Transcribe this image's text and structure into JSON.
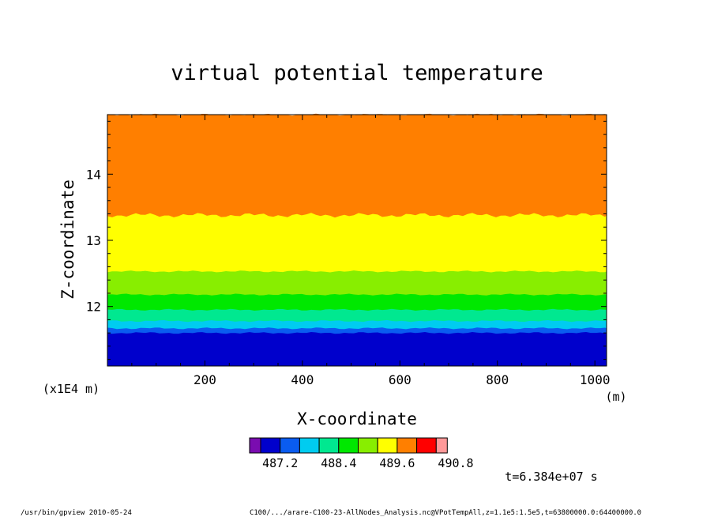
{
  "chart_data": {
    "type": "heatmap",
    "title": "virtual potential temperature",
    "xlabel": "X-coordinate",
    "ylabel": "Z-coordinate",
    "x_units": "(m)",
    "y_units": "(x1E4 m)",
    "xlim": [
      0,
      1024
    ],
    "ylim": [
      11.1,
      14.9
    ],
    "x_ticks": [
      200,
      400,
      600,
      800,
      1000
    ],
    "y_ticks": [
      12,
      13,
      14
    ],
    "x_tick_labels": [
      "200",
      "400",
      "600",
      "800",
      "1000"
    ],
    "y_tick_labels": [
      "12",
      "13",
      "14"
    ],
    "colorbar": {
      "colors": [
        "#7a0cb0",
        "#0000cc",
        "#0a5cf0",
        "#00ccf0",
        "#00e890",
        "#00e800",
        "#88ee00",
        "#ffff00",
        "#ff7f00",
        "#ff0000",
        "#ff9999"
      ],
      "tick_values": [
        487.2,
        488.4,
        489.6,
        490.8
      ],
      "tick_labels": [
        "487.2",
        "488.4",
        "489.6",
        "490.8"
      ]
    },
    "bands": [
      {
        "color": "#0000cc",
        "z_top": 11.6
      },
      {
        "color": "#0a5cf0",
        "z_top": 11.67
      },
      {
        "color": "#00ccf0",
        "z_top": 11.78
      },
      {
        "color": "#00e890",
        "z_top": 11.95
      },
      {
        "color": "#00e800",
        "z_top": 12.18
      },
      {
        "color": "#88ee00",
        "z_top": 12.53
      },
      {
        "color": "#ffff00",
        "z_top": 13.38
      },
      {
        "color": "#ff7f00",
        "z_top": 14.9
      }
    ]
  },
  "annotations": {
    "time": "t=6.384e+07 s",
    "footer_left": "/usr/bin/gpview  2010-05-24",
    "footer_right": "C100/.../arare-C100-23-AllNodes_Analysis.nc@VPotTempAll,z=1.1e5:1.5e5,t=63800000.0:64400000.0"
  }
}
